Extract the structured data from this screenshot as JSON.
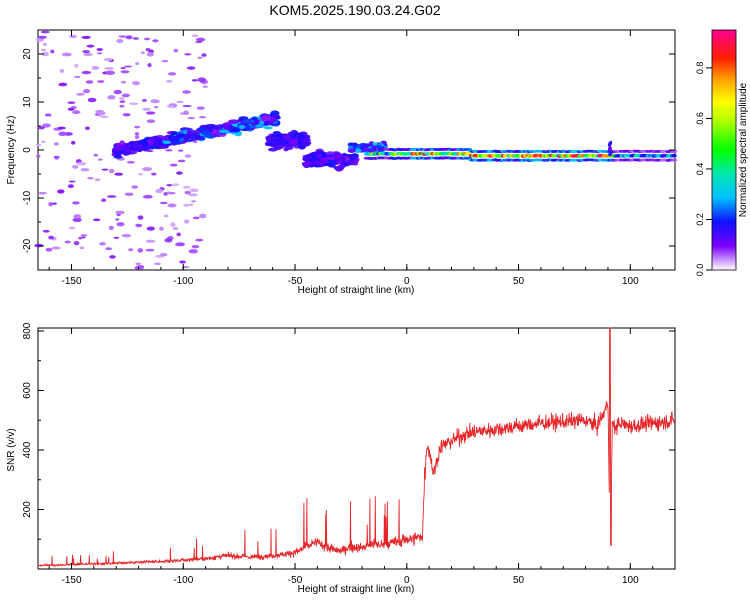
{
  "title": "KOM5.2025.190.03.24.G02",
  "colors": {
    "snr_line": "#e8262a",
    "axis": "#000000"
  },
  "chart_data": [
    {
      "type": "heatmap",
      "title": "KOM5.2025.190.03.24.G02",
      "xlabel": "Height of straight line (km)",
      "ylabel": "Frequency (Hz)",
      "xlim": [
        -165,
        120
      ],
      "ylim": [
        -25,
        25
      ],
      "xticks": [
        -150,
        -100,
        -50,
        0,
        50,
        100
      ],
      "yticks": [
        -20,
        -10,
        0,
        10,
        20
      ],
      "colorbar": {
        "label": "Normalized spectral amplitude",
        "range": [
          0,
          0.95
        ],
        "ticks": [
          0.0,
          0.2,
          0.4,
          0.6,
          0.8
        ],
        "colormap": "rainbow (purple-blue-cyan-green-yellow-orange-red-magenta)"
      },
      "features": [
        {
          "description": "sparse low-amplitude speckle",
          "x_range": [
            -165,
            -100
          ],
          "freq_range": [
            -25,
            25
          ],
          "amplitude": 0.05
        },
        {
          "description": "rising signal band",
          "x_range": [
            -130,
            -60
          ],
          "freq_range": [
            0,
            8
          ],
          "amplitude": 0.25
        },
        {
          "description": "Doppler excursion",
          "x_range": [
            -45,
            -25
          ],
          "freq_range": [
            -6,
            4
          ],
          "amplitude": 0.15
        },
        {
          "description": "strong stable line near 0 Hz",
          "x_range": [
            -20,
            120
          ],
          "freq_center": -1,
          "amplitude": 0.9
        }
      ]
    },
    {
      "type": "line",
      "xlabel": "Height of straight line (km)",
      "ylabel": "SNR (v/v)",
      "xlim": [
        -165,
        120
      ],
      "ylim": [
        0,
        810
      ],
      "xticks": [
        -150,
        -100,
        -50,
        0,
        50,
        100
      ],
      "yticks": [
        200,
        400,
        600,
        800
      ],
      "series": [
        {
          "x": [
            -165,
            -150,
            -130,
            -110,
            -90,
            -80,
            -70,
            -60,
            -50,
            -45,
            -40,
            -35,
            -30,
            -25,
            -20,
            -15,
            -10,
            -5,
            0,
            5,
            7,
            8,
            9,
            10,
            12,
            15,
            20,
            25,
            30,
            40,
            50,
            60,
            70,
            80,
            85,
            88,
            90,
            91,
            92,
            93,
            95,
            100,
            110,
            120
          ],
          "y": [
            12,
            15,
            20,
            25,
            35,
            45,
            40,
            45,
            55,
            75,
            90,
            70,
            60,
            75,
            70,
            85,
            80,
            90,
            100,
            105,
            110,
            300,
            420,
            400,
            320,
            410,
            430,
            450,
            460,
            470,
            480,
            490,
            495,
            500,
            480,
            520,
            560,
            80,
            500,
            470,
            490,
            480,
            490,
            500
          ]
        }
      ]
    }
  ]
}
